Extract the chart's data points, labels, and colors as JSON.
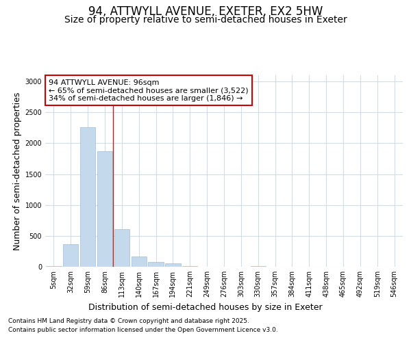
{
  "title_line1": "94, ATTWYLL AVENUE, EXETER, EX2 5HW",
  "title_line2": "Size of property relative to semi-detached houses in Exeter",
  "xlabel": "Distribution of semi-detached houses by size in Exeter",
  "ylabel": "Number of semi-detached properties",
  "categories": [
    "5sqm",
    "32sqm",
    "59sqm",
    "86sqm",
    "113sqm",
    "140sqm",
    "167sqm",
    "194sqm",
    "221sqm",
    "249sqm",
    "276sqm",
    "303sqm",
    "330sqm",
    "357sqm",
    "384sqm",
    "411sqm",
    "438sqm",
    "465sqm",
    "492sqm",
    "519sqm",
    "546sqm"
  ],
  "values": [
    10,
    370,
    2260,
    1870,
    610,
    170,
    80,
    50,
    15,
    0,
    0,
    0,
    15,
    0,
    0,
    0,
    0,
    0,
    0,
    0,
    0
  ],
  "bar_color": "#c5d9ed",
  "bar_edge_color": "#a0bcd8",
  "red_line_x": 3.5,
  "annotation_title": "94 ATTWYLL AVENUE: 96sqm",
  "annotation_line1": "← 65% of semi-detached houses are smaller (3,522)",
  "annotation_line2": "34% of semi-detached houses are larger (1,846) →",
  "annotation_box_color": "#ffffff",
  "annotation_box_edge": "#cc0000",
  "footnote_line1": "Contains HM Land Registry data © Crown copyright and database right 2025.",
  "footnote_line2": "Contains public sector information licensed under the Open Government Licence v3.0.",
  "ylim": [
    0,
    3100
  ],
  "yticks": [
    0,
    500,
    1000,
    1500,
    2000,
    2500,
    3000
  ],
  "bg_color": "#ffffff",
  "plot_bg_color": "#ffffff",
  "grid_color": "#d0dce8",
  "title_fontsize": 12,
  "subtitle_fontsize": 10,
  "axis_label_fontsize": 9,
  "tick_fontsize": 7,
  "annotation_fontsize": 8,
  "footnote_fontsize": 6.5
}
